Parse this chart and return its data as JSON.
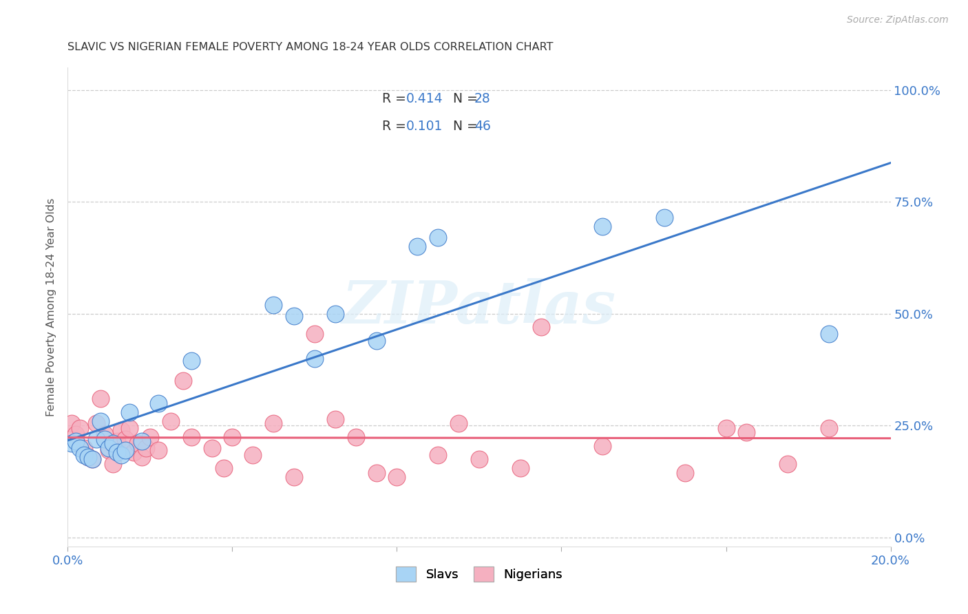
{
  "title": "SLAVIC VS NIGERIAN FEMALE POVERTY AMONG 18-24 YEAR OLDS CORRELATION CHART",
  "source": "Source: ZipAtlas.com",
  "ylabel": "Female Poverty Among 18-24 Year Olds",
  "xlim": [
    0.0,
    0.2
  ],
  "ylim": [
    -0.02,
    1.05
  ],
  "ytick_labels": [
    "0.0%",
    "25.0%",
    "50.0%",
    "75.0%",
    "100.0%"
  ],
  "ytick_vals": [
    0.0,
    0.25,
    0.5,
    0.75,
    1.0
  ],
  "xtick_vals": [
    0.0,
    0.04,
    0.08,
    0.12,
    0.16,
    0.2
  ],
  "slavs_R": "0.414",
  "slavs_N": "28",
  "nigerians_R": "0.101",
  "nigerians_N": "46",
  "slav_color": "#a8d4f5",
  "nigerian_color": "#f5b0c0",
  "slav_line_color": "#3a78c9",
  "nigerian_line_color": "#e8607a",
  "watermark": "ZIPatlas",
  "slavs_x": [
    0.001,
    0.002,
    0.003,
    0.004,
    0.005,
    0.006,
    0.007,
    0.008,
    0.009,
    0.01,
    0.011,
    0.012,
    0.013,
    0.014,
    0.015,
    0.018,
    0.022,
    0.03,
    0.05,
    0.055,
    0.06,
    0.065,
    0.075,
    0.085,
    0.09,
    0.13,
    0.145,
    0.185
  ],
  "slavs_y": [
    0.21,
    0.215,
    0.2,
    0.185,
    0.18,
    0.175,
    0.22,
    0.26,
    0.22,
    0.2,
    0.21,
    0.19,
    0.185,
    0.195,
    0.28,
    0.215,
    0.3,
    0.395,
    0.52,
    0.495,
    0.4,
    0.5,
    0.44,
    0.65,
    0.67,
    0.695,
    0.715,
    0.455
  ],
  "nigerians_x": [
    0.001,
    0.002,
    0.003,
    0.004,
    0.005,
    0.006,
    0.007,
    0.008,
    0.009,
    0.01,
    0.011,
    0.012,
    0.013,
    0.014,
    0.015,
    0.016,
    0.017,
    0.018,
    0.019,
    0.02,
    0.022,
    0.025,
    0.028,
    0.03,
    0.035,
    0.038,
    0.04,
    0.045,
    0.05,
    0.055,
    0.06,
    0.065,
    0.07,
    0.075,
    0.08,
    0.09,
    0.095,
    0.1,
    0.11,
    0.115,
    0.13,
    0.15,
    0.16,
    0.165,
    0.175,
    0.185
  ],
  "nigerians_y": [
    0.255,
    0.23,
    0.245,
    0.2,
    0.18,
    0.175,
    0.255,
    0.31,
    0.23,
    0.195,
    0.165,
    0.215,
    0.24,
    0.22,
    0.245,
    0.19,
    0.21,
    0.18,
    0.2,
    0.225,
    0.195,
    0.26,
    0.35,
    0.225,
    0.2,
    0.155,
    0.225,
    0.185,
    0.255,
    0.135,
    0.455,
    0.265,
    0.225,
    0.145,
    0.135,
    0.185,
    0.255,
    0.175,
    0.155,
    0.47,
    0.205,
    0.145,
    0.245,
    0.235,
    0.165,
    0.245
  ]
}
